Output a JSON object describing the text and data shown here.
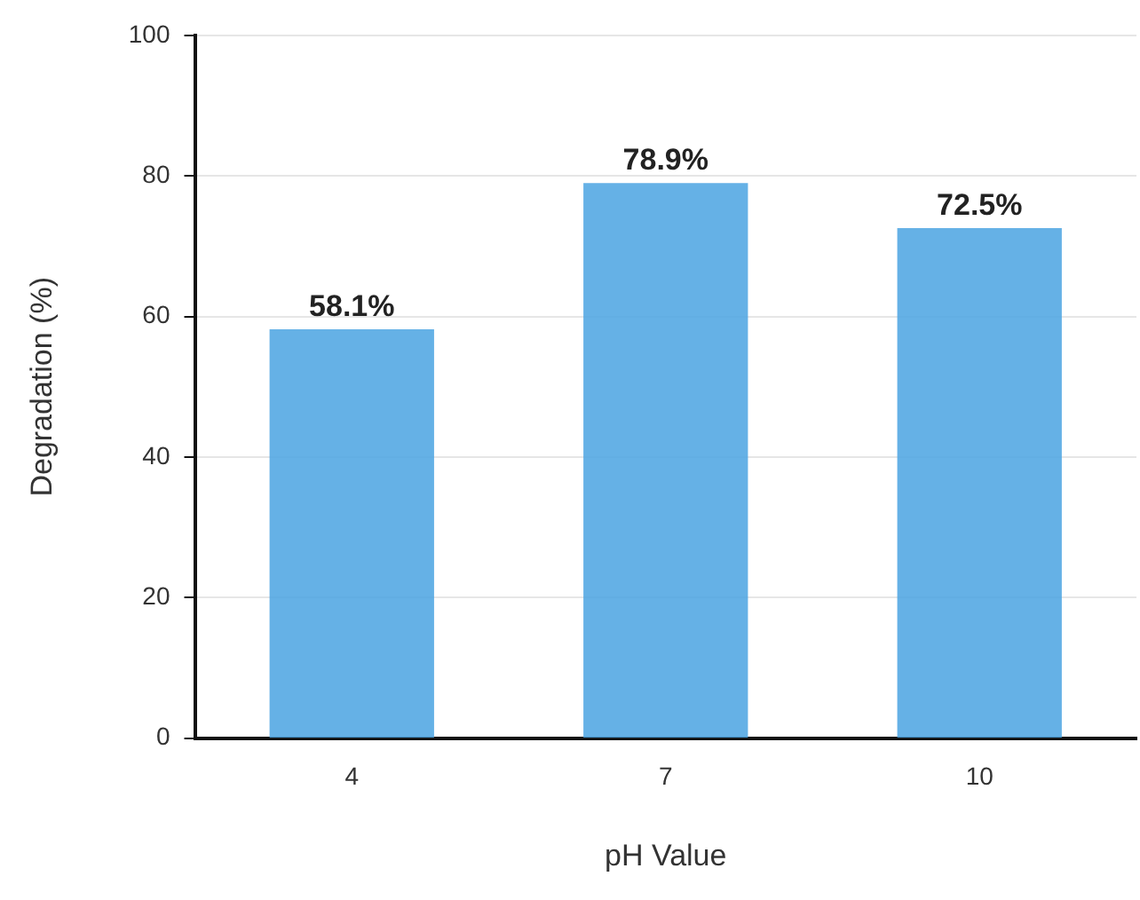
{
  "chart_data": {
    "type": "bar",
    "xlabel": "pH Value",
    "ylabel": "Degradation (%)",
    "categories": [
      "4",
      "7",
      "10"
    ],
    "values": [
      58.1,
      78.9,
      72.5
    ],
    "value_labels": [
      "58.1%",
      "78.9%",
      "72.5%"
    ],
    "color": "#4aa3e2",
    "ylim": [
      0,
      100
    ],
    "yticks": [
      0,
      20,
      40,
      60,
      80,
      100
    ],
    "grid": "y",
    "legend": false
  }
}
